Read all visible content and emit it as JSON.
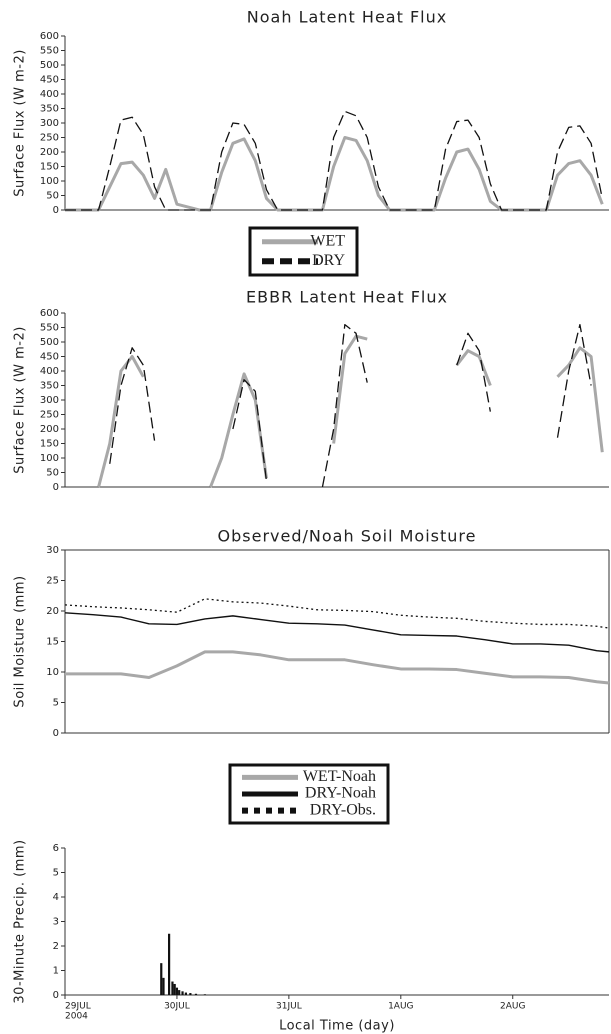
{
  "chart_data": [
    {
      "type": "line",
      "title": "Noah Latent Heat Flux",
      "ylabel": "Surface Flux (W m-2)",
      "xlim": [
        0,
        4.86
      ],
      "ylim": [
        0,
        600
      ],
      "yticks": [
        0,
        50,
        100,
        150,
        200,
        250,
        300,
        350,
        400,
        450,
        500,
        550,
        600
      ],
      "x": [
        0,
        0.1,
        0.2,
        0.3,
        0.4,
        0.5,
        0.6,
        0.7,
        0.8,
        0.9,
        1.0,
        1.1,
        1.2,
        1.3,
        1.4,
        1.5,
        1.6,
        1.7,
        1.8,
        1.9,
        2.0,
        2.1,
        2.2,
        2.3,
        2.4,
        2.5,
        2.6,
        2.7,
        2.8,
        2.9,
        3.0,
        3.1,
        3.2,
        3.3,
        3.4,
        3.5,
        3.6,
        3.7,
        3.8,
        3.9,
        4.0,
        4.1,
        4.2,
        4.3,
        4.4,
        4.5,
        4.6,
        4.7,
        4.8
      ],
      "series": [
        {
          "name": "WET",
          "color": "#a8a8a8",
          "style": "solid",
          "values": [
            0,
            0,
            0,
            0,
            80,
            160,
            165,
            120,
            40,
            140,
            20,
            10,
            0,
            0,
            130,
            230,
            245,
            170,
            40,
            0,
            0,
            0,
            0,
            0,
            150,
            250,
            240,
            170,
            50,
            0,
            0,
            0,
            0,
            0,
            110,
            200,
            210,
            140,
            30,
            0,
            0,
            0,
            0,
            0,
            120,
            160,
            170,
            120,
            20
          ]
        },
        {
          "name": "DRY",
          "color": "#111111",
          "style": "dashed",
          "values": [
            0,
            0,
            0,
            0,
            150,
            310,
            320,
            260,
            80,
            0,
            0,
            0,
            0,
            0,
            200,
            300,
            295,
            230,
            70,
            0,
            0,
            0,
            0,
            0,
            250,
            340,
            325,
            250,
            80,
            0,
            0,
            0,
            0,
            0,
            210,
            305,
            310,
            250,
            90,
            0,
            0,
            0,
            0,
            0,
            200,
            285,
            290,
            230,
            40
          ]
        }
      ]
    },
    {
      "type": "line",
      "title": "EBBR Latent Heat Flux",
      "ylabel": "Surface Flux (W m-2)",
      "xlim": [
        0,
        4.86
      ],
      "ylim": [
        0,
        600
      ],
      "yticks": [
        0,
        50,
        100,
        150,
        200,
        250,
        300,
        350,
        400,
        450,
        500,
        550,
        600
      ],
      "x": [
        0,
        0.1,
        0.2,
        0.3,
        0.4,
        0.5,
        0.6,
        0.7,
        0.8,
        0.9,
        1.0,
        1.1,
        1.2,
        1.3,
        1.4,
        1.5,
        1.6,
        1.7,
        1.8,
        1.9,
        2.0,
        2.1,
        2.2,
        2.3,
        2.4,
        2.5,
        2.6,
        2.7,
        2.8,
        2.9,
        3.0,
        3.1,
        3.2,
        3.3,
        3.4,
        3.5,
        3.6,
        3.7,
        3.8,
        3.9,
        4.0,
        4.1,
        4.2,
        4.3,
        4.4,
        4.5,
        4.6,
        4.7,
        4.8
      ],
      "series": [
        {
          "color": "#a8a8a8",
          "style": "solid",
          "values": [
            null,
            null,
            null,
            0,
            150,
            400,
            450,
            380,
            null,
            null,
            null,
            null,
            null,
            0,
            100,
            250,
            390,
            300,
            30,
            null,
            null,
            null,
            null,
            null,
            150,
            460,
            520,
            510,
            null,
            null,
            null,
            null,
            null,
            30,
            null,
            420,
            470,
            450,
            350,
            null,
            null,
            null,
            null,
            null,
            380,
            420,
            480,
            450,
            120
          ]
        },
        {
          "color": "#111111",
          "style": "dashed",
          "values": [
            null,
            null,
            null,
            null,
            80,
            350,
            480,
            420,
            160,
            null,
            null,
            null,
            null,
            null,
            null,
            200,
            370,
            330,
            20,
            null,
            null,
            null,
            null,
            0,
            200,
            560,
            530,
            360,
            null,
            null,
            null,
            null,
            null,
            null,
            null,
            420,
            530,
            470,
            260,
            null,
            null,
            null,
            null,
            null,
            170,
            400,
            560,
            350,
            null
          ]
        }
      ]
    },
    {
      "type": "line",
      "title": "Observed/Noah Soil Moisture",
      "ylabel": "Soil Moisture (mm)",
      "xlim": [
        0,
        4.86
      ],
      "ylim": [
        0,
        30
      ],
      "yticks": [
        0,
        5,
        10,
        15,
        20,
        25,
        30
      ],
      "x": [
        0,
        0.25,
        0.5,
        0.75,
        1.0,
        1.25,
        1.5,
        1.75,
        2.0,
        2.25,
        2.5,
        2.75,
        3.0,
        3.25,
        3.5,
        3.75,
        4.0,
        4.25,
        4.5,
        4.75,
        4.86
      ],
      "series": [
        {
          "name": "WET-Noah",
          "color": "#a8a8a8",
          "style": "solid",
          "values": [
            9.7,
            9.7,
            9.7,
            9.1,
            11,
            13.3,
            13.3,
            12.8,
            12.0,
            12.0,
            12.0,
            11.2,
            10.5,
            10.5,
            10.4,
            9.8,
            9.2,
            9.2,
            9.1,
            8.4,
            8.2
          ]
        },
        {
          "name": "DRY-Noah",
          "color": "#111111",
          "style": "solid",
          "values": [
            19.7,
            19.4,
            19.0,
            17.9,
            17.8,
            18.7,
            19.2,
            18.6,
            18.0,
            17.9,
            17.7,
            16.9,
            16.1,
            16.0,
            15.9,
            15.3,
            14.6,
            14.6,
            14.4,
            13.5,
            13.3
          ]
        },
        {
          "name": "DRY-Obs.",
          "color": "#111111",
          "style": "dotted",
          "values": [
            21.0,
            20.7,
            20.5,
            20.2,
            19.8,
            22.0,
            21.5,
            21.3,
            20.8,
            20.2,
            20.1,
            19.9,
            19.3,
            19.0,
            18.8,
            18.3,
            18.0,
            17.8,
            17.8,
            17.5,
            17.2
          ]
        }
      ]
    },
    {
      "type": "bar",
      "ylabel": "30-Minute Precip. (mm)",
      "xlabel": "Local Time (day)",
      "xlim": [
        0,
        4.86
      ],
      "ylim": [
        0,
        6
      ],
      "yticks": [
        0,
        1,
        2,
        3,
        4,
        5,
        6
      ],
      "xticks": [
        {
          "value": 0,
          "label": "29JUL"
        },
        {
          "value": 1,
          "label": "30JUL"
        },
        {
          "value": 2,
          "label": "31JUL"
        },
        {
          "value": 3,
          "label": "1AUG"
        },
        {
          "value": 4,
          "label": "2AUG"
        }
      ],
      "year_label": "2004",
      "color": "#111111",
      "x": [
        0.86,
        0.88,
        0.93,
        0.96,
        0.98,
        1.0,
        1.02,
        1.05,
        1.08,
        1.12,
        1.17,
        1.25
      ],
      "values": [
        1.3,
        0.7,
        2.5,
        0.55,
        0.45,
        0.3,
        0.2,
        0.15,
        0.1,
        0.08,
        0.05,
        0.03
      ]
    }
  ]
}
